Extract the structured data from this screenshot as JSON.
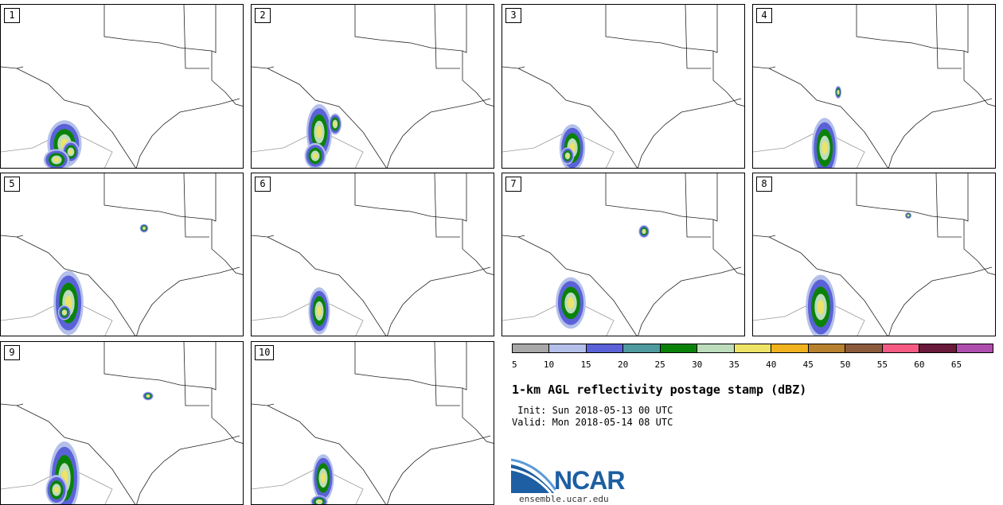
{
  "panels": [
    {
      "label": "1"
    },
    {
      "label": "2"
    },
    {
      "label": "3"
    },
    {
      "label": "4"
    },
    {
      "label": "5"
    },
    {
      "label": "6"
    },
    {
      "label": "7"
    },
    {
      "label": "8"
    },
    {
      "label": "9"
    },
    {
      "label": "10"
    }
  ],
  "legend": {
    "colors": [
      "#a8a8a8",
      "#b4c0ea",
      "#5b62d8",
      "#4f9aa0",
      "#0a820a",
      "#bcdcbc",
      "#ede367",
      "#f0b21e",
      "#b8812f",
      "#8c5a3c",
      "#f45a82",
      "#6a1a3a",
      "#b04eae"
    ],
    "ticks": [
      "5",
      "10",
      "15",
      "20",
      "25",
      "30",
      "35",
      "40",
      "45",
      "50",
      "55",
      "60",
      "65"
    ]
  },
  "title": "1-km AGL reflectivity postage stamp (dBZ)",
  "init": " Init: Sun 2018-05-13 00 UTC",
  "valid": "Valid: Mon 2018-05-14 08 UTC",
  "logo": {
    "text": "NCAR",
    "site": "ensemble.ucar.edu"
  }
}
